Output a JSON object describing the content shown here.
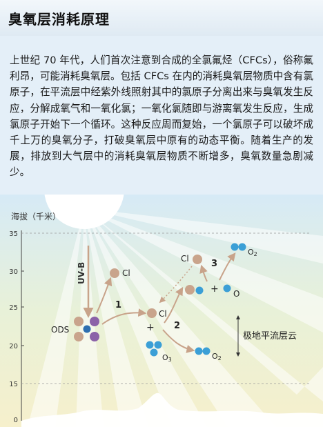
{
  "title": "臭氧层消耗原理",
  "paragraph": "上世纪 70 年代，人们首次注意到合成的全氯氟烃（CFCs），俗称氟利昂，可能消耗臭氧层。包括 CFCs 在内的消耗臭氧层物质中含有氯原子，在平流层中经紫外线照射其中的氯原子分离出来与臭氧发生反应，分解成氧气和一氧化氯；一氧化氯随即与游离氧发生反应，生成氯原子开始下一个循环。这种反应周而复始，一个氯原子可以破坏成千上万的臭氧分子，打破臭氧层中原有的动态平衡。随着生产的发展，排放到大气层中的消耗臭氧层物质不断增多，臭氧数量急剧减少。",
  "diagram": {
    "axis_label": "海拔（千米）",
    "ticks": [
      "35",
      "30",
      "25",
      "20",
      "15",
      "0"
    ],
    "uvb_label": "UV-B",
    "labels": {
      "ods": "ODS",
      "cl_1": "Cl",
      "cl_2": "Cl",
      "cl_3": "Cl",
      "o3": "O",
      "o3_sub": "3",
      "o2_1": "O",
      "o2_1_sub": "2",
      "o2_2": "O",
      "o2_2_sub": "2",
      "o_free": "O",
      "plus_1": "+",
      "plus_2": "+",
      "step_1": "1",
      "step_2": "2",
      "step_3": "3",
      "psc": "极地平流层云"
    },
    "colors": {
      "chlorine": "#c9a48c",
      "fluorine": "#8b62a8",
      "carbon": "#2f6fb0",
      "oxygen": "#3b9fd6",
      "arrow": "#c8a38a",
      "sun": "#ffffff"
    }
  }
}
